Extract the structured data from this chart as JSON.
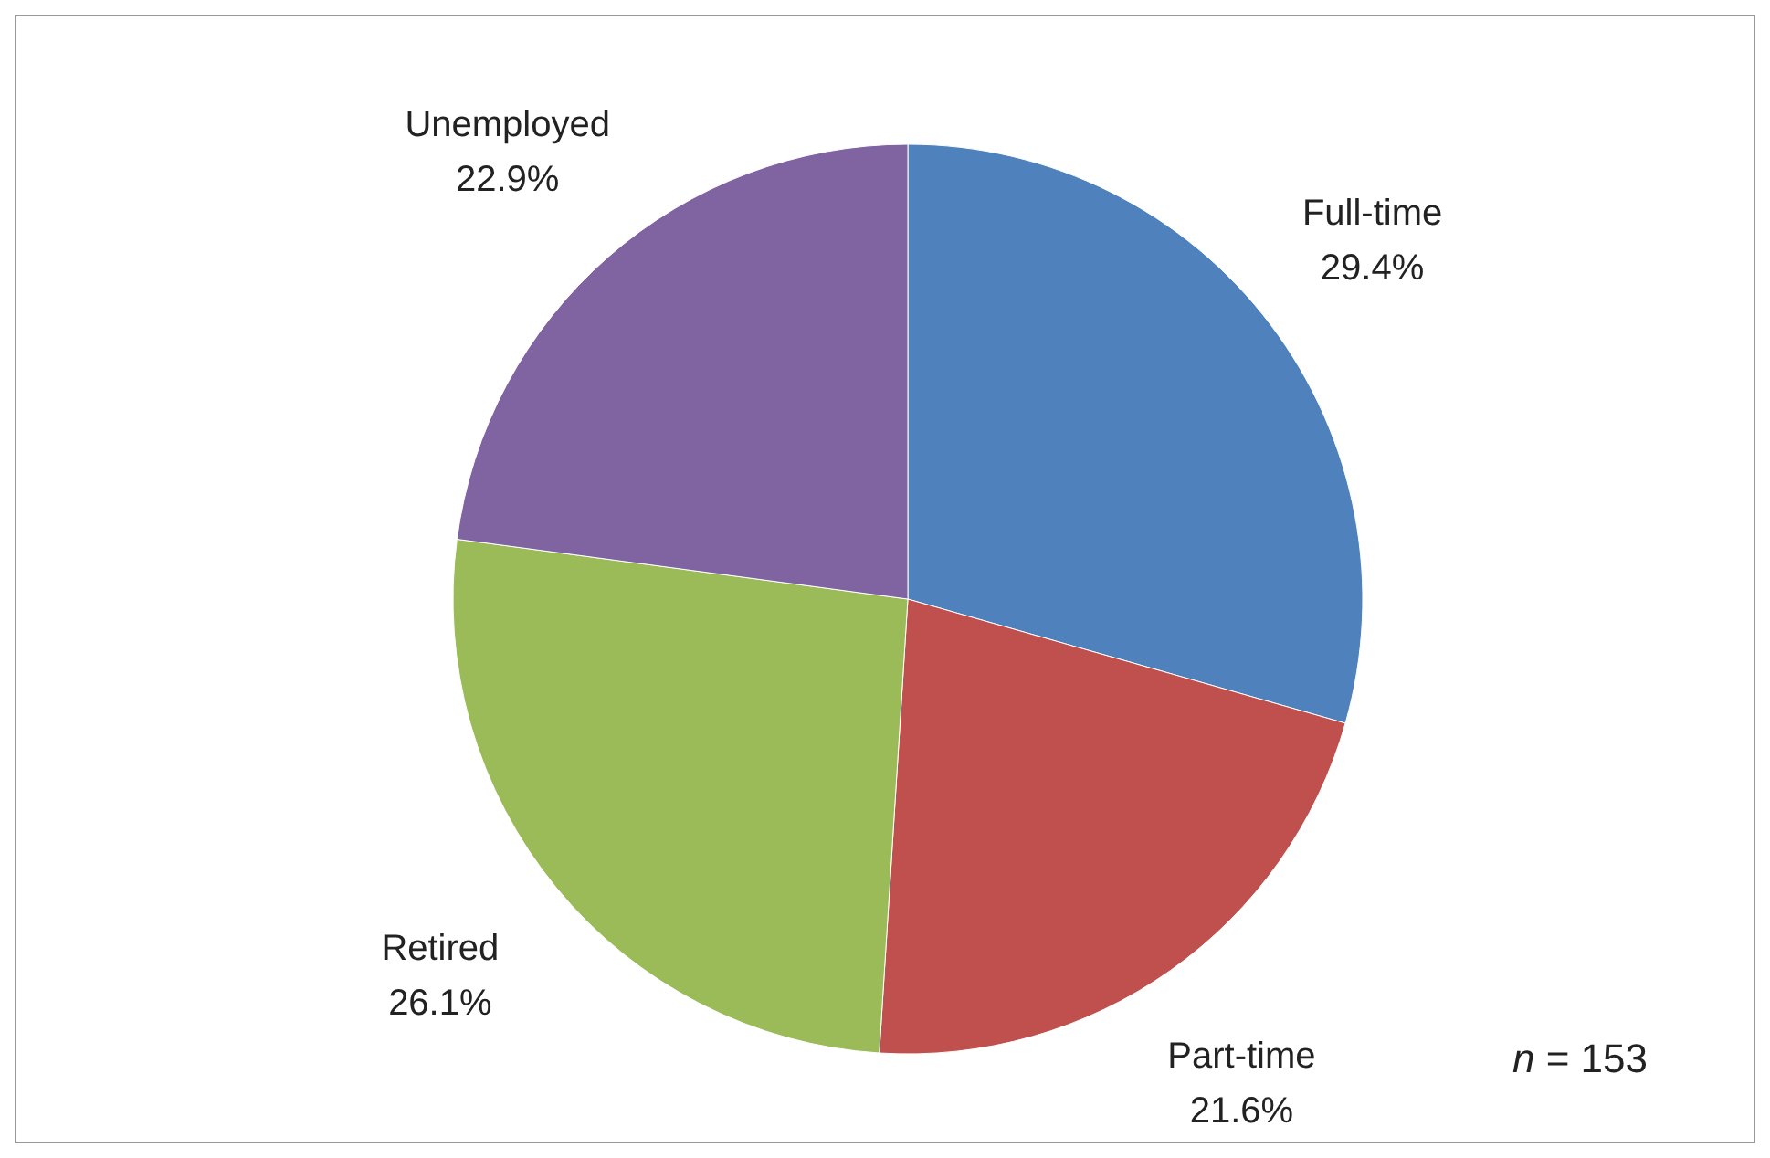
{
  "chart_data": {
    "type": "pie",
    "categories": [
      "Full-time",
      "Part-time",
      "Retired",
      "Unemployed"
    ],
    "values": [
      29.4,
      21.6,
      26.1,
      22.9
    ],
    "value_labels": [
      "29.4%",
      "21.6%",
      "26.1%",
      "22.9%"
    ],
    "colors": [
      "#4f81bd",
      "#c0504d",
      "#9bbb59",
      "#8064a2"
    ],
    "annotations": [
      "n = 153"
    ]
  }
}
